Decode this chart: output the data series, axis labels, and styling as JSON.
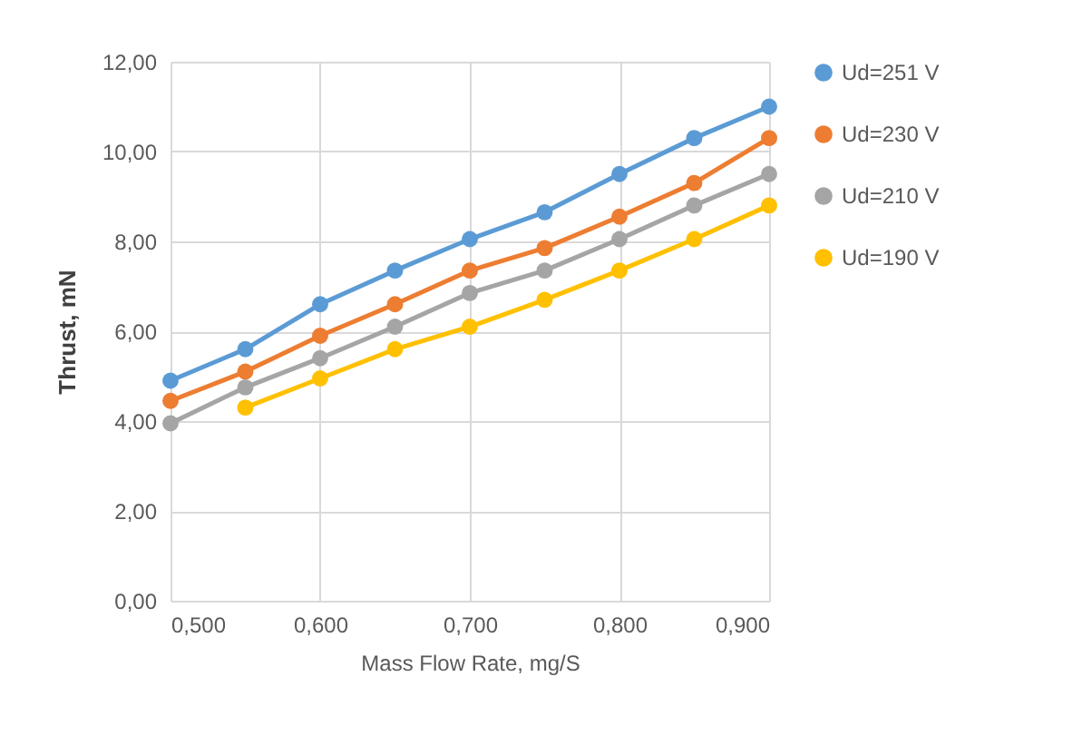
{
  "chart_data": {
    "type": "line",
    "xlabel": "Mass Flow Rate, mg/S",
    "ylabel": "Thrust, mN",
    "x": [
      0.5,
      0.55,
      0.6,
      0.65,
      0.7,
      0.75,
      0.8,
      0.85,
      0.9
    ],
    "series": [
      {
        "name": "Ud=251 V",
        "color": "#5b9bd5",
        "values": [
          4.9,
          5.6,
          6.6,
          7.35,
          8.05,
          8.65,
          9.5,
          10.3,
          11.0
        ]
      },
      {
        "name": "Ud=230 V",
        "color": "#ed7d31",
        "values": [
          4.45,
          5.1,
          5.9,
          6.6,
          7.35,
          7.85,
          8.55,
          9.3,
          10.3
        ]
      },
      {
        "name": "Ud=210 V",
        "color": "#a5a5a5",
        "values": [
          3.95,
          4.75,
          5.4,
          6.1,
          6.85,
          7.35,
          8.05,
          8.8,
          9.5
        ]
      },
      {
        "name": "Ud=190 V",
        "color": "#ffc000",
        "values": [
          null,
          4.3,
          4.95,
          5.6,
          6.1,
          6.7,
          7.35,
          8.05,
          8.8
        ]
      }
    ],
    "xlim": [
      0.5,
      0.9
    ],
    "xticks": [
      {
        "value": 0.5,
        "label": "0,500"
      },
      {
        "value": 0.6,
        "label": "0,600"
      },
      {
        "value": 0.7,
        "label": "0,700"
      },
      {
        "value": 0.8,
        "label": "0,800"
      },
      {
        "value": 0.9,
        "label": "0,900"
      }
    ],
    "ylim": [
      0,
      12
    ],
    "yticks": [
      {
        "value": 0,
        "label": "0,00"
      },
      {
        "value": 2,
        "label": "2,00"
      },
      {
        "value": 4,
        "label": "4,00"
      },
      {
        "value": 6,
        "label": "6,00"
      },
      {
        "value": 8,
        "label": "8,00"
      },
      {
        "value": 10,
        "label": "10,00"
      },
      {
        "value": 12,
        "label": "12,00"
      }
    ],
    "grid": true,
    "legend": "right",
    "marker": "circle",
    "line_style": "solid"
  }
}
